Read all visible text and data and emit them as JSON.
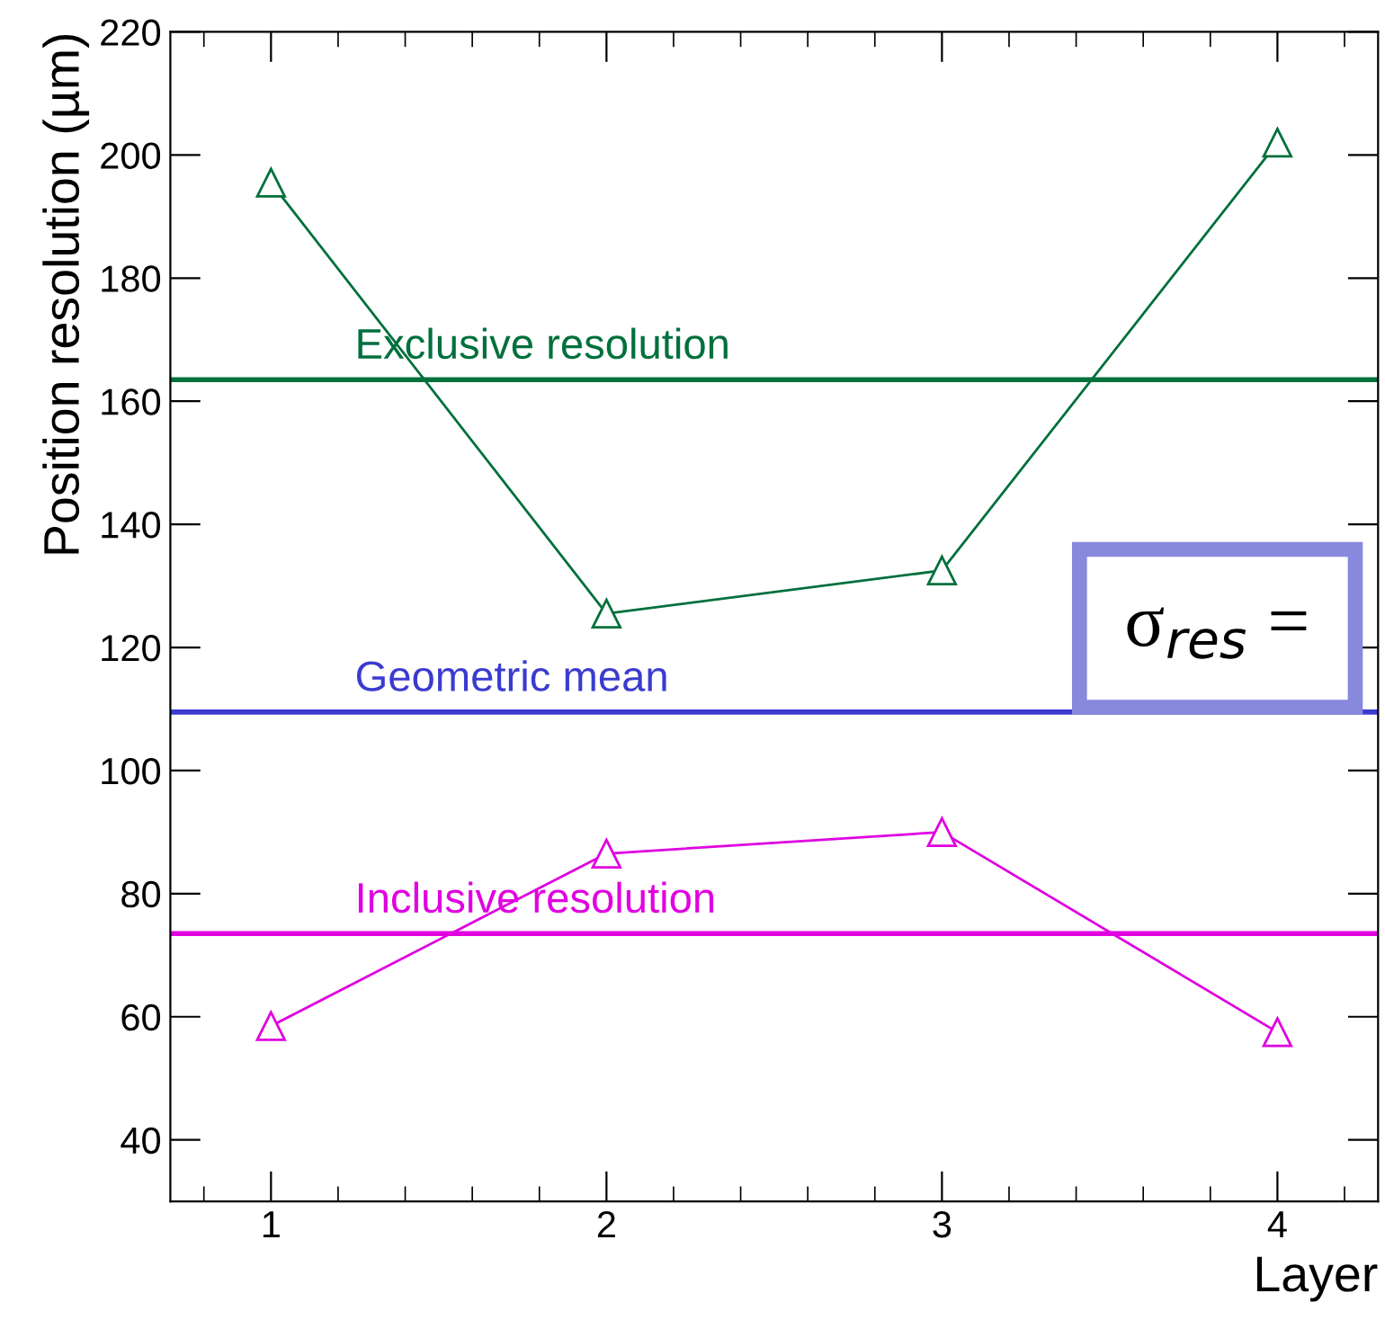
{
  "chart_data": {
    "type": "line",
    "xlabel": "Layer",
    "ylabel": "Position resolution (µm)",
    "x": [
      1,
      2,
      3,
      4
    ],
    "series": [
      {
        "color": "#00703c",
        "values": [
          195.5,
          125.5,
          132.5,
          202
        ],
        "marker": "triangle"
      },
      {
        "color": "#e000e0",
        "values": [
          58.5,
          86.5,
          90,
          57.5
        ],
        "marker": "triangle"
      }
    ],
    "xlim": [
      0.7,
      4.3
    ],
    "xticks": [
      1,
      2,
      3,
      4
    ],
    "ylim": [
      30,
      220
    ],
    "yticks": [
      40,
      60,
      80,
      100,
      120,
      140,
      160,
      180,
      200,
      220
    ],
    "grid": false,
    "legend": false,
    "ref_lines": [
      {
        "axis": "y",
        "value": 163.5,
        "label": "Exclusive resolution",
        "color": "#00703c"
      },
      {
        "axis": "y",
        "value": 109.5,
        "label": "Geometric mean",
        "color": "#3b3bd0"
      },
      {
        "axis": "y",
        "value": 73.5,
        "label": "Inclusive resolution",
        "color": "#e000e0"
      }
    ],
    "annotations": [
      "σ$_{res}$ ="
    ]
  }
}
